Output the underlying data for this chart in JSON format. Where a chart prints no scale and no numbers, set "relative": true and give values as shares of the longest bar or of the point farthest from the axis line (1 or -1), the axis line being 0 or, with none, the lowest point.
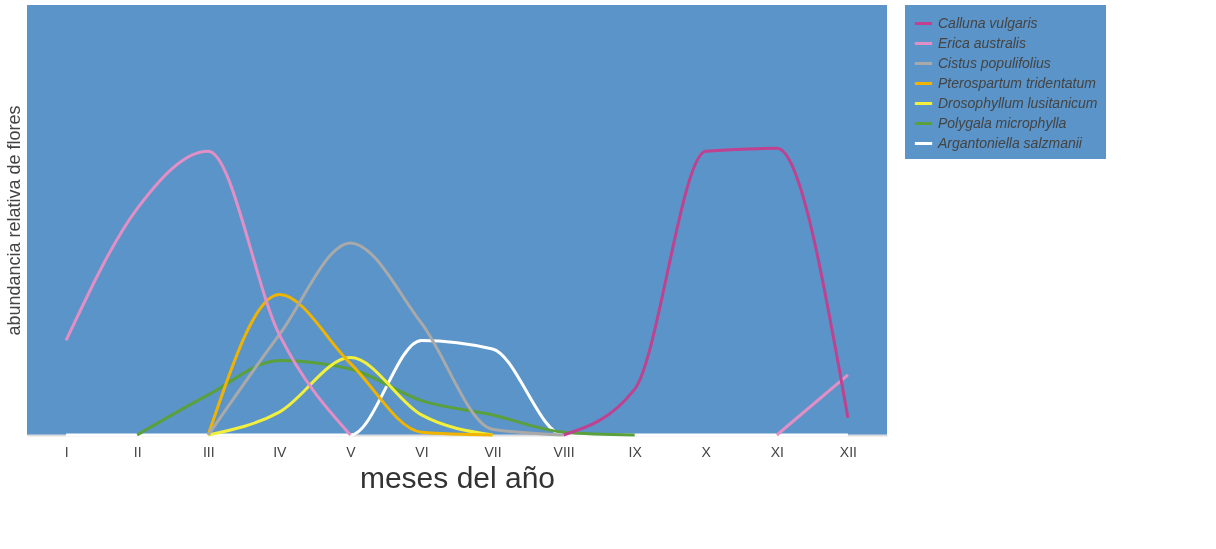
{
  "chart_data": {
    "type": "line",
    "relative": true,
    "xlabel": "meses del año",
    "ylabel": "abundancia relativa de flores",
    "categories": [
      "I",
      "II",
      "III",
      "IV",
      "V",
      "VI",
      "VII",
      "VIII",
      "IX",
      "X",
      "XI",
      "XII"
    ],
    "legend": "right",
    "grid": false,
    "marker": "none",
    "line_style": "solid",
    "series": [
      {
        "name": "Calluna vulgaris",
        "color": "#c0418f",
        "values": [
          null,
          null,
          null,
          null,
          null,
          null,
          null,
          0,
          0.16,
          0.99,
          1.0,
          0.06
        ]
      },
      {
        "name": "Erica australis",
        "color": "#e38fc6",
        "values": [
          0.33,
          0.79,
          0.99,
          0.35,
          0,
          null,
          null,
          null,
          null,
          null,
          0,
          0.21
        ]
      },
      {
        "name": "Cistus populifolius",
        "color": "#a9a9a9",
        "values": [
          null,
          null,
          0,
          0.35,
          0.67,
          0.39,
          0.02,
          0,
          null,
          null,
          null,
          null
        ]
      },
      {
        "name": "Pterospartum tridentatum",
        "color": "#f0b400",
        "values": [
          null,
          null,
          0,
          0.49,
          0.25,
          0.01,
          0,
          null,
          null,
          null,
          null,
          null
        ]
      },
      {
        "name": "Drosophyllum lusitanicum",
        "color": "#f2f03c",
        "values": [
          null,
          null,
          0,
          0.08,
          0.27,
          0.07,
          0,
          null,
          null,
          null,
          null,
          null
        ]
      },
      {
        "name": "Polygala microphylla",
        "color": "#5aa03c",
        "values": [
          null,
          0,
          0.14,
          0.26,
          0.23,
          0.12,
          0.07,
          0.01,
          0,
          null,
          null,
          null
        ]
      },
      {
        "name": "Argantoniella salzmanii",
        "color": "#ffffff",
        "values": [
          0,
          0,
          0,
          0,
          0,
          0.33,
          0.3,
          0,
          0,
          0,
          0,
          0
        ]
      }
    ]
  }
}
